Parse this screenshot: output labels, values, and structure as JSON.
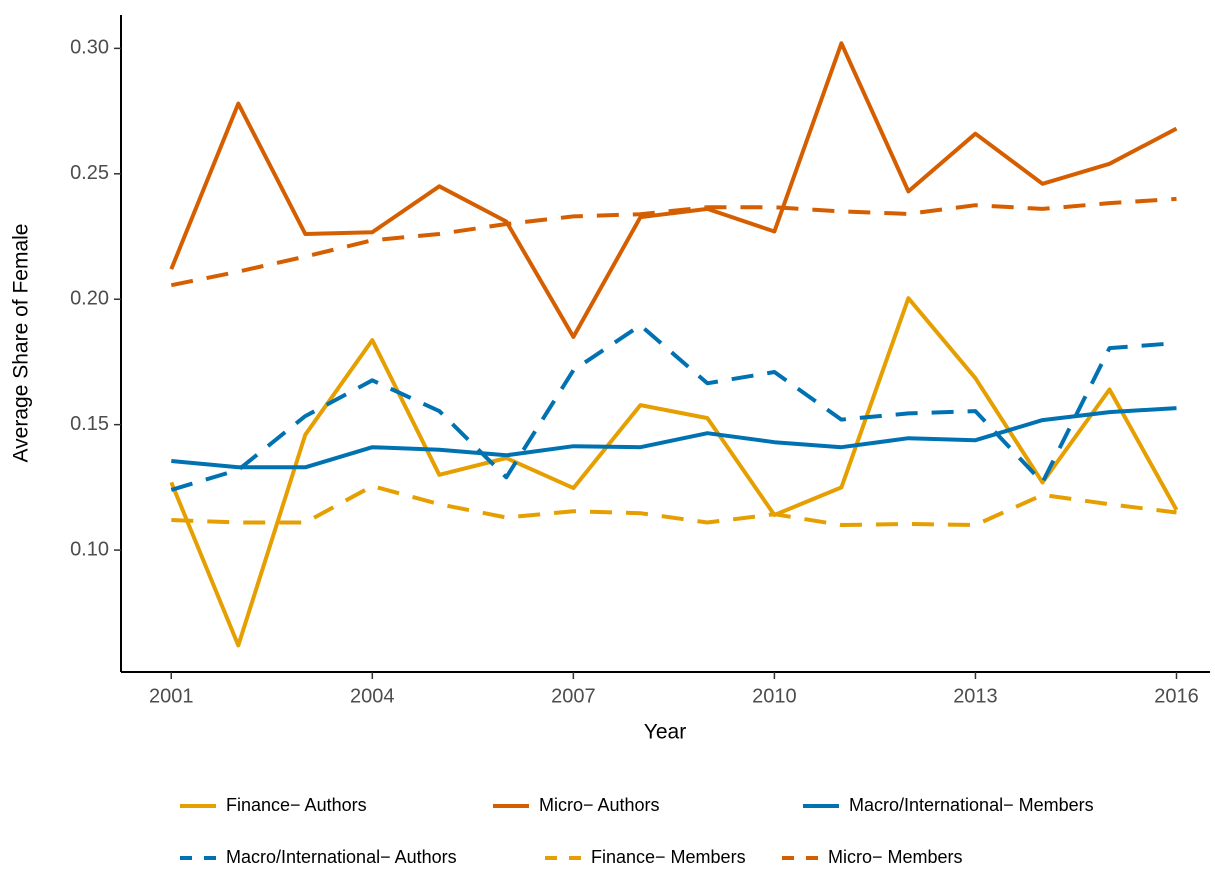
{
  "chart_data": {
    "type": "line",
    "xlabel": "Year",
    "ylabel": "Average Share of Female",
    "x": [
      2001,
      2002,
      2003,
      2004,
      2005,
      2006,
      2007,
      2008,
      2009,
      2010,
      2011,
      2012,
      2013,
      2014,
      2015,
      2016
    ],
    "xlim": [
      2000.25,
      2016.5
    ],
    "xticks": [
      2001,
      2004,
      2007,
      2010,
      2013,
      2016
    ],
    "ylim": [
      0.0514,
      0.3133
    ],
    "yticks": [
      {
        "value": 0.1,
        "label": "0.10"
      },
      0.15,
      {
        "value": 0.2,
        "label": "0.20"
      },
      0.25,
      {
        "value": 0.3,
        "label": "0.30"
      }
    ],
    "grid": false,
    "legend": "bottom",
    "series": [
      {
        "name": "Finance− Authors",
        "color": "#E69F00",
        "linestyle": "solid",
        "values": [
          0.127,
          0.062,
          0.146,
          0.1837,
          0.13,
          0.1367,
          0.1247,
          0.1578,
          0.1526,
          0.114,
          0.125,
          0.2004,
          0.1685,
          0.127,
          0.164,
          0.116
        ]
      },
      {
        "name": "Micro− Authors",
        "color": "#D55E00",
        "linestyle": "solid",
        "values": [
          0.212,
          0.278,
          0.226,
          0.2267,
          0.245,
          0.231,
          0.185,
          0.2327,
          0.236,
          0.227,
          0.302,
          0.243,
          0.266,
          0.246,
          0.254,
          0.268
        ]
      },
      {
        "name": "Macro/International− Members",
        "color": "#0072B2",
        "linestyle": "solid",
        "values": [
          0.1355,
          0.133,
          0.133,
          0.141,
          0.14,
          0.1378,
          0.1414,
          0.141,
          0.1466,
          0.143,
          0.141,
          0.1446,
          0.1438,
          0.1518,
          0.155,
          0.1566
        ]
      },
      {
        "name": "Macro/International− Authors",
        "color": "#0072B2",
        "linestyle": "dashed",
        "values": [
          0.124,
          0.132,
          0.1534,
          0.1677,
          0.1554,
          0.129,
          0.1717,
          0.1896,
          0.1665,
          0.171,
          0.152,
          0.1545,
          0.1554,
          0.127,
          0.1805,
          0.1825
        ]
      },
      {
        "name": "Finance− Members",
        "color": "#E69F00",
        "linestyle": "dashed",
        "values": [
          0.112,
          0.111,
          0.111,
          0.1255,
          0.1183,
          0.113,
          0.1155,
          0.1147,
          0.111,
          0.1143,
          0.11,
          0.1104,
          0.11,
          0.122,
          0.1183,
          0.115
        ]
      },
      {
        "name": "Micro− Members",
        "color": "#D55E00",
        "linestyle": "dashed",
        "values": [
          0.2056,
          0.211,
          0.217,
          0.2235,
          0.226,
          0.23,
          0.233,
          0.2339,
          0.2367,
          0.2367,
          0.235,
          0.234,
          0.2375,
          0.236,
          0.2383,
          0.24
        ]
      }
    ]
  }
}
